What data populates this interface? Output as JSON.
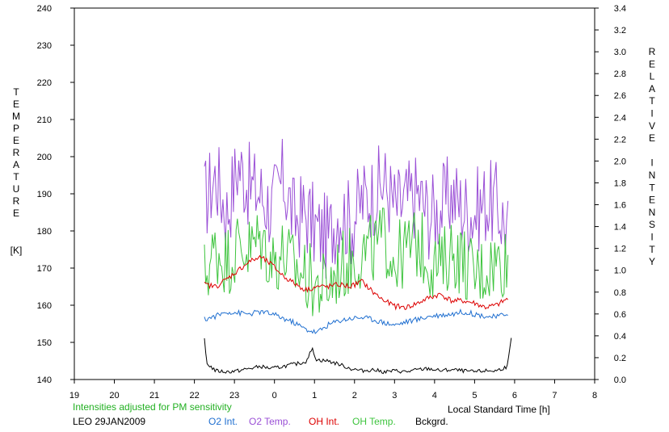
{
  "chart_data": {
    "type": "line",
    "left_axis": {
      "title_letters": [
        "T",
        "E",
        "M",
        "P",
        "E",
        "R",
        "A",
        "T",
        "U",
        "R",
        "E"
      ],
      "unit": "[K]",
      "ticks": [
        140,
        150,
        160,
        170,
        180,
        190,
        200,
        210,
        220,
        230,
        240
      ],
      "ylim": [
        140,
        240
      ]
    },
    "right_axis": {
      "title_letters": [
        "R",
        "E",
        "L",
        "A",
        "T",
        "I",
        "V",
        "E",
        "",
        "I",
        "N",
        "T",
        "E",
        "N",
        "S",
        "I",
        "T",
        "Y"
      ],
      "ticks": [
        "0.0",
        "0.2",
        "0.4",
        "0.6",
        "0.8",
        "1.0",
        "1.2",
        "1.4",
        "1.6",
        "1.8",
        "2.0",
        "2.2",
        "2.4",
        "2.6",
        "2.8",
        "3.0",
        "3.2",
        "3.4"
      ],
      "ylim": [
        0,
        3.4
      ]
    },
    "x_axis": {
      "label": "Local Standard Time [h]",
      "tick_labels": [
        "19",
        "20",
        "21",
        "22",
        "23",
        "0",
        "1",
        "2",
        "3",
        "4",
        "5",
        "6",
        "7",
        "8"
      ],
      "range_hours_elapsed": [
        0,
        13
      ]
    },
    "note": "Intensities adjusted for PM sensitivity",
    "station": "LEO 29JAN2009",
    "colors": {
      "o2_int": "#1f6fd0",
      "o2_temp": "#9a4fd6",
      "oh_int": "#dd0000",
      "oh_temp": "#3ec43e",
      "background": "#000000",
      "note": "#22b022"
    },
    "legend": [
      {
        "key": "o2_int",
        "label": "O2 Int."
      },
      {
        "key": "o2_temp",
        "label": "O2 Temp."
      },
      {
        "key": "oh_int",
        "label": "OH Int."
      },
      {
        "key": "oh_temp",
        "label": "OH Temp."
      },
      {
        "key": "background",
        "label": "Bckgrd."
      }
    ],
    "series": [
      {
        "key": "o2_temp",
        "axis": "left",
        "t_start": "22:15",
        "t_end": "05:50",
        "points": [
          [
            0,
            188
          ],
          [
            0.5,
            195
          ],
          [
            1,
            185
          ],
          [
            1.5,
            198
          ],
          [
            2,
            192
          ],
          [
            2.5,
            190
          ],
          [
            3,
            186
          ],
          [
            3.5,
            194
          ],
          [
            4,
            183
          ],
          [
            4.5,
            185
          ],
          [
            5,
            180
          ],
          [
            5.5,
            178
          ],
          [
            6,
            186
          ],
          [
            6.5,
            182
          ],
          [
            7,
            188
          ],
          [
            7.5,
            190
          ],
          [
            8,
            193
          ],
          [
            8.5,
            186
          ],
          [
            9,
            188
          ],
          [
            9.5,
            190
          ],
          [
            10,
            184
          ],
          [
            10.5,
            186
          ],
          [
            11,
            190
          ],
          [
            11.5,
            186
          ],
          [
            12,
            185
          ],
          [
            12.5,
            188
          ],
          [
            13,
            187
          ],
          [
            13.5,
            180
          ]
        ]
      },
      {
        "key": "oh_temp",
        "axis": "left",
        "t_start": "22:15",
        "t_end": "05:50",
        "points": [
          [
            0,
            168
          ],
          [
            0.5,
            175
          ],
          [
            1,
            172
          ],
          [
            1.5,
            176
          ],
          [
            2,
            175
          ],
          [
            2.5,
            178
          ],
          [
            3,
            172
          ],
          [
            3.5,
            174
          ],
          [
            4,
            170
          ],
          [
            4.5,
            168
          ],
          [
            5,
            165
          ],
          [
            5.5,
            165
          ],
          [
            6,
            170
          ],
          [
            6.5,
            172
          ],
          [
            7,
            174
          ],
          [
            7.5,
            175
          ],
          [
            8,
            178
          ],
          [
            8.5,
            172
          ],
          [
            9,
            175
          ],
          [
            9.5,
            177
          ],
          [
            10,
            172
          ],
          [
            10.5,
            170
          ],
          [
            11,
            175
          ],
          [
            11.5,
            172
          ],
          [
            12,
            168
          ],
          [
            12.5,
            170
          ],
          [
            13,
            172
          ],
          [
            13.5,
            172
          ]
        ]
      },
      {
        "key": "oh_int",
        "axis": "right",
        "t_start": "22:15",
        "t_end": "05:50",
        "points": [
          [
            0,
            0.87
          ],
          [
            0.5,
            0.85
          ],
          [
            1,
            0.92
          ],
          [
            1.5,
            1.0
          ],
          [
            2,
            1.08
          ],
          [
            2.5,
            1.12
          ],
          [
            3,
            1.05
          ],
          [
            3.5,
            0.95
          ],
          [
            4,
            0.88
          ],
          [
            4.5,
            0.82
          ],
          [
            5,
            0.85
          ],
          [
            5.5,
            0.85
          ],
          [
            6,
            0.87
          ],
          [
            6.5,
            0.85
          ],
          [
            7,
            0.9
          ],
          [
            7.5,
            0.8
          ],
          [
            8,
            0.72
          ],
          [
            8.5,
            0.67
          ],
          [
            9,
            0.66
          ],
          [
            9.5,
            0.7
          ],
          [
            10,
            0.75
          ],
          [
            10.5,
            0.78
          ],
          [
            11,
            0.72
          ],
          [
            11.5,
            0.72
          ],
          [
            12,
            0.7
          ],
          [
            12.5,
            0.66
          ],
          [
            13,
            0.68
          ],
          [
            13.5,
            0.74
          ]
        ]
      },
      {
        "key": "o2_int",
        "axis": "right",
        "t_start": "22:15",
        "t_end": "05:50",
        "points": [
          [
            0,
            0.55
          ],
          [
            0.5,
            0.58
          ],
          [
            1,
            0.62
          ],
          [
            1.5,
            0.61
          ],
          [
            2,
            0.6
          ],
          [
            2.5,
            0.62
          ],
          [
            3,
            0.6
          ],
          [
            3.5,
            0.56
          ],
          [
            4,
            0.52
          ],
          [
            4.5,
            0.46
          ],
          [
            5,
            0.43
          ],
          [
            5.5,
            0.5
          ],
          [
            6,
            0.54
          ],
          [
            6.5,
            0.56
          ],
          [
            7,
            0.57
          ],
          [
            7.5,
            0.55
          ],
          [
            8,
            0.52
          ],
          [
            8.5,
            0.5
          ],
          [
            9,
            0.53
          ],
          [
            9.5,
            0.55
          ],
          [
            10,
            0.58
          ],
          [
            10.5,
            0.59
          ],
          [
            11,
            0.6
          ],
          [
            11.5,
            0.62
          ],
          [
            12,
            0.6
          ],
          [
            12.5,
            0.58
          ],
          [
            13,
            0.57
          ],
          [
            13.5,
            0.61
          ]
        ]
      },
      {
        "key": "background",
        "axis": "right",
        "t_start": "22:15",
        "t_end": "05:55",
        "points": [
          [
            0,
            0.36
          ],
          [
            0.1,
            0.15
          ],
          [
            0.5,
            0.08
          ],
          [
            1,
            0.07
          ],
          [
            1.5,
            0.08
          ],
          [
            2,
            0.1
          ],
          [
            2.5,
            0.12
          ],
          [
            3,
            0.1
          ],
          [
            3.5,
            0.12
          ],
          [
            4,
            0.14
          ],
          [
            4.5,
            0.16
          ],
          [
            4.8,
            0.28
          ],
          [
            5,
            0.18
          ],
          [
            5.5,
            0.17
          ],
          [
            6,
            0.14
          ],
          [
            6.5,
            0.1
          ],
          [
            7,
            0.08
          ],
          [
            7.5,
            0.09
          ],
          [
            8,
            0.07
          ],
          [
            8.5,
            0.08
          ],
          [
            9,
            0.07
          ],
          [
            9.5,
            0.09
          ],
          [
            10,
            0.1
          ],
          [
            10.5,
            0.08
          ],
          [
            11,
            0.09
          ],
          [
            11.5,
            0.08
          ],
          [
            12,
            0.07
          ],
          [
            12.5,
            0.08
          ],
          [
            13,
            0.08
          ],
          [
            13.5,
            0.12
          ],
          [
            13.67,
            0.37
          ]
        ]
      }
    ]
  }
}
